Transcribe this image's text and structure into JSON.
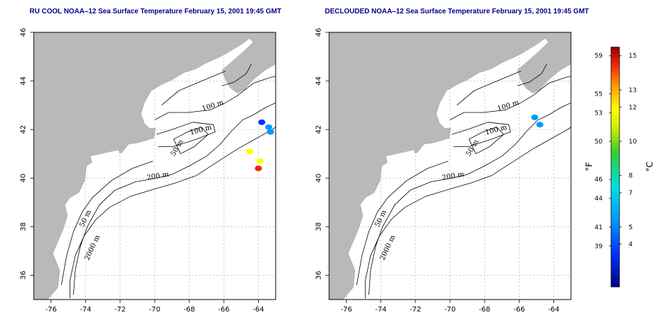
{
  "panels": [
    {
      "title": "RU COOL NOAA‒12 Sea Surface Temperature February 15, 2001 19:45 GMT",
      "sst_patches": [
        {
          "lon": -63.8,
          "lat": 42.3,
          "temp_c": 4
        },
        {
          "lon": -63.4,
          "lat": 42.1,
          "temp_c": 4.5
        },
        {
          "lon": -63.3,
          "lat": 41.9,
          "temp_c": 5
        },
        {
          "lon": -64.0,
          "lat": 40.4,
          "temp_c": 13.5
        },
        {
          "lon": -63.9,
          "lat": 40.7,
          "temp_c": 11
        },
        {
          "lon": -64.5,
          "lat": 41.1,
          "temp_c": 10.5
        }
      ]
    },
    {
      "title": "DECLOUDED NOAA‒12 Sea Surface Temperature February 15, 2001 19:45 GMT",
      "sst_patches": [
        {
          "lon": -65.1,
          "lat": 42.5,
          "temp_c": 5
        },
        {
          "lon": -64.8,
          "lat": 42.2,
          "temp_c": 4.5
        }
      ]
    }
  ],
  "axes": {
    "lon_range": [
      -77,
      -63
    ],
    "lat_range": [
      35,
      46
    ],
    "lon_ticks": [
      "-76",
      "-74",
      "-72",
      "-70",
      "-68",
      "-66",
      "-64"
    ],
    "lon_tick_values": [
      -76,
      -74,
      -72,
      -70,
      -68,
      -66,
      -64
    ],
    "lat_ticks": [
      "36",
      "38",
      "40",
      "42",
      "44",
      "46"
    ],
    "lat_tick_values": [
      36,
      38,
      40,
      42,
      44,
      46
    ]
  },
  "contour_labels": [
    {
      "text": "100 m",
      "lon": -66.6,
      "lat": 42.9,
      "rot": -18
    },
    {
      "text": "100 m",
      "lon": -67.3,
      "lat": 41.9,
      "rot": -15
    },
    {
      "text": "50 m",
      "lon": -68.6,
      "lat": 41.2,
      "rot": -60
    },
    {
      "text": "200 m",
      "lon": -69.8,
      "lat": 40.0,
      "rot": -10
    },
    {
      "text": "50 m",
      "lon": -73.9,
      "lat": 38.3,
      "rot": -65
    },
    {
      "text": "2000 m",
      "lon": -73.5,
      "lat": 37.1,
      "rot": -65
    }
  ],
  "colorbar": {
    "f_unit": "°F",
    "c_unit": "°C",
    "temp_range_c": [
      1.5,
      15.5
    ],
    "f_labels": [
      "59",
      "55",
      "53",
      "50",
      "46",
      "44",
      "41",
      "39"
    ],
    "f_values": [
      59,
      55,
      53,
      50,
      46,
      44,
      41,
      39
    ],
    "c_labels": [
      "15",
      "13",
      "12",
      "10",
      "8",
      "7",
      "5",
      "4"
    ],
    "c_values": [
      15,
      13,
      12,
      10,
      8,
      7,
      5,
      4
    ]
  },
  "colors": {
    "land": "#b9b9b9",
    "ocean": "#ffffff",
    "grid": "#b0b0b0",
    "contour": "#000000",
    "title": "#00008b"
  }
}
